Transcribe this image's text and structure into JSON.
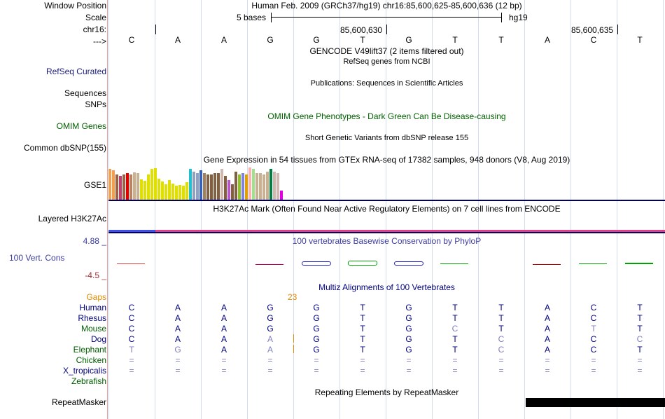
{
  "header": {
    "title": "Human Feb. 2009 (GRCh37/hg19)   chr16:85,600,625-85,600,636 (12 bp)",
    "scale_text": "5 bases",
    "assembly": "hg19",
    "coord_630": "85,600,630",
    "coord_635": "85,600,635",
    "strand_arrow": "--->"
  },
  "labels": {
    "window_position": "Window Position",
    "scale": "Scale",
    "chr": "chr16:",
    "refseq": "RefSeq Curated",
    "sequences": "Sequences",
    "snps": "SNPs",
    "omim": "OMIM Genes",
    "dbsnp": "Common dbSNP(155)",
    "gse1": "GSE1",
    "h3k27ac": "Layered H3K27Ac",
    "cons_max": "4.88 _",
    "cons": "100 Vert. Cons",
    "cons_min": "-4.5 _",
    "gaps": "Gaps",
    "species": [
      "Human",
      "Rhesus",
      "Mouse",
      "Dog",
      "Elephant",
      "Chicken",
      "X_tropicalis",
      "Zebrafish"
    ],
    "repeatmasker": "RepeatMasker"
  },
  "tracks": {
    "gencode": "GENCODE V49lift37 (2 items filtered out)",
    "refseq": "RefSeq genes from NCBI",
    "publications": "Publications: Sequences in Scientific Articles",
    "omim": "OMIM Gene Phenotypes - Dark Green Can Be Disease-causing",
    "dbsnp": "Short Genetic Variants from dbSNP release 155",
    "gtex": "Gene Expression in 54 tissues from GTEx RNA-seq of 17382 samples, 948 donors (V8, Aug 2019)",
    "h3k27ac": "H3K27Ac Mark (Often Found Near Active Regulatory Elements) on 7 cell lines from ENCODE",
    "phylop": "100 vertebrates Basewise Conservation by PhyloP",
    "multiz": "Multiz Alignments of 100 Vertebrates",
    "gap_count": "23",
    "repeatmasker": "Repeating Elements by RepeatMasker"
  },
  "bases": [
    "C",
    "A",
    "A",
    "G",
    "G",
    "T",
    "G",
    "T",
    "T",
    "A",
    "C",
    "T"
  ],
  "alignment": [
    [
      "C",
      "A",
      "A",
      "G",
      "G",
      "T",
      "G",
      "T",
      "T",
      "A",
      "C",
      "T"
    ],
    [
      "C",
      "A",
      "A",
      "G",
      "G",
      "T",
      "G",
      "T",
      "T",
      "A",
      "C",
      "T"
    ],
    [
      "C",
      "A",
      "A",
      "G",
      "G",
      "T",
      "G",
      "C",
      "T",
      "A",
      "T",
      "T"
    ],
    [
      "C",
      "A",
      "A",
      "A",
      "G",
      "T",
      "G",
      "T",
      "C",
      "A",
      "C",
      "C"
    ],
    [
      "T",
      "G",
      "A",
      "A",
      "G",
      "T",
      "G",
      "T",
      "C",
      "A",
      "C",
      "T"
    ],
    [
      "=",
      "=",
      "=",
      "=",
      "=",
      "=",
      "=",
      "=",
      "=",
      "=",
      "=",
      "="
    ],
    [
      "=",
      "=",
      "=",
      "=",
      "=",
      "=",
      "=",
      "=",
      "=",
      "=",
      "=",
      "="
    ],
    [
      "",
      "",
      "",
      "",
      "",
      "",
      "",
      "",
      "",
      "",
      "",
      ""
    ]
  ],
  "alignment_match": [
    [
      1,
      1,
      1,
      1,
      1,
      1,
      1,
      1,
      1,
      1,
      1,
      1
    ],
    [
      1,
      1,
      1,
      1,
      1,
      1,
      1,
      1,
      1,
      1,
      1,
      1
    ],
    [
      1,
      1,
      1,
      1,
      1,
      1,
      1,
      0,
      1,
      1,
      0,
      1
    ],
    [
      1,
      1,
      1,
      0,
      1,
      1,
      1,
      1,
      0,
      1,
      1,
      0
    ],
    [
      0,
      0,
      1,
      0,
      1,
      1,
      1,
      1,
      0,
      1,
      1,
      1
    ],
    [
      0,
      0,
      0,
      0,
      0,
      0,
      0,
      0,
      0,
      0,
      0,
      0
    ],
    [
      0,
      0,
      0,
      0,
      0,
      0,
      0,
      0,
      0,
      0,
      0,
      0
    ],
    [
      0,
      0,
      0,
      0,
      0,
      0,
      0,
      0,
      0,
      0,
      0,
      0
    ]
  ],
  "gtex_bars": [
    {
      "value": 44,
      "color": "#f0a050"
    },
    {
      "value": 42,
      "color": "#f0a050"
    },
    {
      "value": 36,
      "color": "#a06040"
    },
    {
      "value": 34,
      "color": "#c04070"
    },
    {
      "value": 36,
      "color": "#a06040"
    },
    {
      "value": 38,
      "color": "#e00000"
    },
    {
      "value": 36,
      "color": "#c08060"
    },
    {
      "value": 39,
      "color": "#c8b090"
    },
    {
      "value": 38,
      "color": "#c8b090"
    },
    {
      "value": 29,
      "color": "#e0e000"
    },
    {
      "value": 27,
      "color": "#e0e000"
    },
    {
      "value": 36,
      "color": "#e0e000"
    },
    {
      "value": 44,
      "color": "#e0e000"
    },
    {
      "value": 45,
      "color": "#e0e000"
    },
    {
      "value": 30,
      "color": "#e0e000"
    },
    {
      "value": 26,
      "color": "#e0e000"
    },
    {
      "value": 22,
      "color": "#e0e000"
    },
    {
      "value": 28,
      "color": "#e0e000"
    },
    {
      "value": 23,
      "color": "#e0e000"
    },
    {
      "value": 20,
      "color": "#e0e000"
    },
    {
      "value": 21,
      "color": "#e0e000"
    },
    {
      "value": 20,
      "color": "#e0e000"
    },
    {
      "value": 25,
      "color": "#e0e000"
    },
    {
      "value": 44,
      "color": "#20c0d0"
    },
    {
      "value": 40,
      "color": "#90a0c0"
    },
    {
      "value": 38,
      "color": "#90a0c0"
    },
    {
      "value": 42,
      "color": "#3060c0"
    },
    {
      "value": 38,
      "color": "#a08060"
    },
    {
      "value": 36,
      "color": "#806040"
    },
    {
      "value": 36,
      "color": "#806040"
    },
    {
      "value": 38,
      "color": "#806040"
    },
    {
      "value": 38,
      "color": "#806040"
    },
    {
      "value": 44,
      "color": "#d0b8b0"
    },
    {
      "value": 34,
      "color": "#806040"
    },
    {
      "value": 28,
      "color": "#c050d0"
    },
    {
      "value": 22,
      "color": "#806040"
    },
    {
      "value": 40,
      "color": "#806040"
    },
    {
      "value": 36,
      "color": "#90c030"
    },
    {
      "value": 38,
      "color": "#8080e0"
    },
    {
      "value": 36,
      "color": "#e0a000"
    },
    {
      "value": 46,
      "color": "#ffb0b0"
    },
    {
      "value": 44,
      "color": "#a0e090"
    },
    {
      "value": 38,
      "color": "#c8b090"
    },
    {
      "value": 38,
      "color": "#c8b090"
    },
    {
      "value": 36,
      "color": "#c8b090"
    },
    {
      "value": 40,
      "color": "#c8b090"
    },
    {
      "value": 44,
      "color": "#008040"
    },
    {
      "value": 40,
      "color": "#d0b8b0"
    },
    {
      "value": 38,
      "color": "#d0b8b0"
    },
    {
      "value": 13,
      "color": "#e000e0"
    }
  ],
  "phylop": [
    {
      "value": 0.3,
      "color": "#e04040"
    },
    {
      "value": 0.0,
      "color": "#000000"
    },
    {
      "value": 0.0,
      "color": "#000000"
    },
    {
      "value": -0.4,
      "color": "#c00060"
    },
    {
      "value": 1.2,
      "color": "#2020c0"
    },
    {
      "value": 1.6,
      "color": "#00a000"
    },
    {
      "value": 1.2,
      "color": "#2020c0"
    },
    {
      "value": 0.2,
      "color": "#00a000"
    },
    {
      "value": 0.0,
      "color": "#000000"
    },
    {
      "value": -0.4,
      "color": "#c00000"
    },
    {
      "value": 0.3,
      "color": "#00a000"
    },
    {
      "value": 0.5,
      "color": "#00a000"
    }
  ],
  "colors": {
    "refseq": "#1c1c7c",
    "omim": "#006000",
    "cons": "#3c3ca0",
    "gaps": "#e08c00",
    "species": "#000080",
    "multiz": "#000080",
    "h3k27ac_a": "#4050e0",
    "h3k27ac_b": "#e04080",
    "mismatch": "#8080c0"
  }
}
